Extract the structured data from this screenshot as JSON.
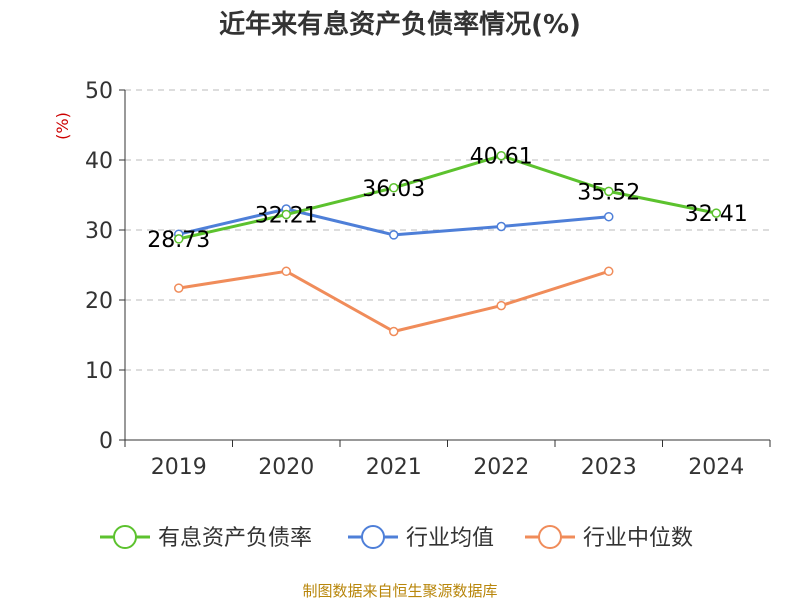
{
  "chart_data": {
    "type": "line",
    "title": "近年来有息资产负债率情况(%)",
    "ylabel": "(%)",
    "categories": [
      "2019",
      "2020",
      "2021",
      "2022",
      "2023",
      "2024"
    ],
    "y_ticks": [
      "0",
      "10",
      "20",
      "30",
      "40",
      "50"
    ],
    "ylim": [
      0,
      50
    ],
    "grid": true,
    "legend_position": "bottom",
    "series": [
      {
        "name": "有息资产负债率",
        "color": "#5cc22e",
        "values": [
          28.73,
          32.21,
          36.03,
          40.61,
          35.52,
          32.41
        ],
        "labels": [
          "28.73",
          "32.21",
          "36.03",
          "40.61",
          "35.52",
          "32.41"
        ]
      },
      {
        "name": "行业均值",
        "color": "#4e7fd8",
        "values": [
          29.4,
          33.0,
          29.3,
          30.5,
          31.9,
          null
        ]
      },
      {
        "name": "行业中位数",
        "color": "#f08c5a",
        "values": [
          21.7,
          24.1,
          15.5,
          19.2,
          24.1,
          null
        ]
      }
    ]
  },
  "source": "制图数据来自恒生聚源数据库"
}
